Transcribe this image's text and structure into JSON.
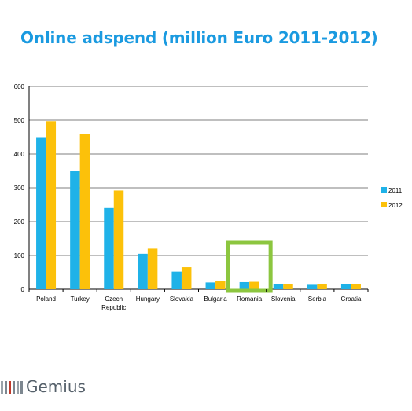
{
  "title": "Online adspend (million Euro 2011-2012)",
  "brand": {
    "name": "Gemius"
  },
  "colors": {
    "2011": "#1fb2e8",
    "2012": "#fcc10a",
    "highlight": "#8cc63f",
    "grid": "#7f7f7f",
    "title": "#1a9ae0"
  },
  "chart_data": {
    "type": "bar",
    "categories": [
      "Poland",
      "Turkey",
      "Czech Republic",
      "Hungary",
      "Slovakia",
      "Bulgaria",
      "Romania",
      "Slovenia",
      "Serbia",
      "Croatia"
    ],
    "category_lines": [
      [
        "Poland"
      ],
      [
        "Turkey"
      ],
      [
        "Czech",
        "Republic"
      ],
      [
        "Hungary"
      ],
      [
        "Slovakia"
      ],
      [
        "Bulgaria"
      ],
      [
        "Romania"
      ],
      [
        "Slovenia"
      ],
      [
        "Serbia"
      ],
      [
        "Croatia"
      ]
    ],
    "series": [
      {
        "name": "2011",
        "values": [
          450,
          350,
          240,
          105,
          52,
          20,
          21,
          15,
          13,
          14
        ]
      },
      {
        "name": "2012",
        "values": [
          497,
          460,
          292,
          120,
          65,
          24,
          22,
          16,
          14,
          14
        ]
      }
    ],
    "ylim": [
      0,
      600
    ],
    "yticks": [
      0,
      100,
      200,
      300,
      400,
      500,
      600
    ],
    "grid": true,
    "legend": "right",
    "highlight_category": "Romania",
    "xlabel": "",
    "ylabel": ""
  }
}
